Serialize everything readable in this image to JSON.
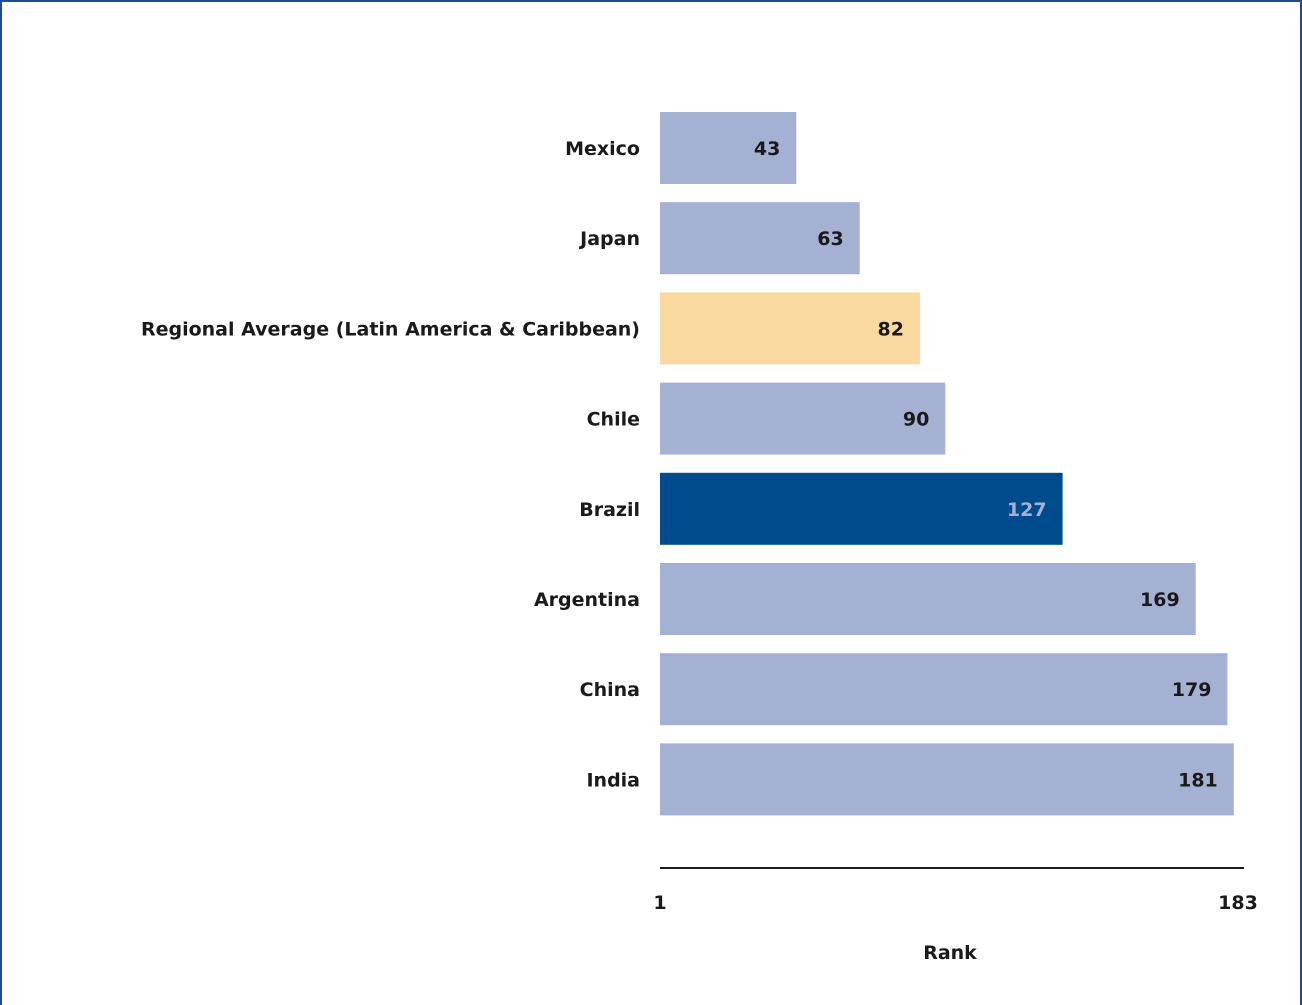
{
  "chart_data": {
    "type": "bar",
    "orientation": "horizontal",
    "categories": [
      "Mexico",
      "Japan",
      "Regional Average (Latin America & Caribbean)",
      "Chile",
      "Brazil",
      "Argentina",
      "China",
      "India"
    ],
    "values": [
      43,
      63,
      82,
      90,
      127,
      169,
      179,
      181
    ],
    "bar_colors": [
      "#a5b1d3",
      "#a5b1d3",
      "#fad9a1",
      "#a5b1d3",
      "#004b8d",
      "#a5b1d3",
      "#a5b1d3",
      "#a5b1d3"
    ],
    "value_label_colors": [
      "#1a1a1a",
      "#1a1a1a",
      "#1a1a1a",
      "#1a1a1a",
      "#a5b1d3",
      "#1a1a1a",
      "#1a1a1a",
      "#1a1a1a"
    ],
    "xlabel": "Rank",
    "ylabel": "",
    "xlim": [
      1,
      183
    ],
    "x_tick_labels": [
      "1",
      "183"
    ],
    "grid": false,
    "data_labels": true
  },
  "colors": {
    "border": "#1f4e8c",
    "axis_line": "#1a1a1a"
  }
}
